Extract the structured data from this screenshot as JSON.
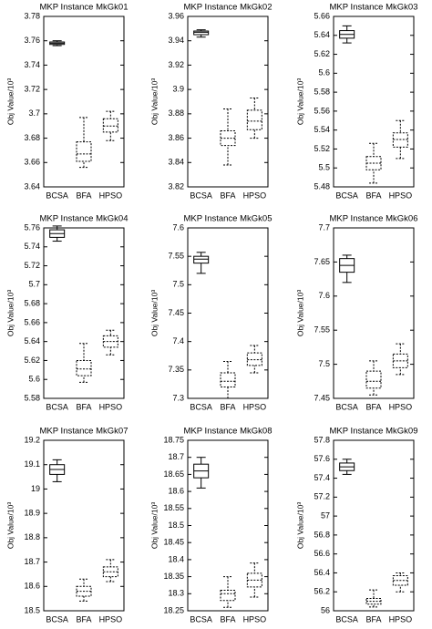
{
  "chart_data": [
    {
      "type": "box",
      "title": "MKP Instance MkGk01",
      "ylabel": "Obj Value/10³",
      "categories": [
        "BCSA",
        "BFA",
        "HPSO"
      ],
      "styles": [
        "solid",
        "dashed",
        "dashed"
      ],
      "boxes": [
        {
          "min": 3.756,
          "q1": 3.757,
          "median": 3.758,
          "q3": 3.759,
          "max": 3.76
        },
        {
          "min": 3.656,
          "q1": 3.661,
          "median": 3.667,
          "q3": 3.677,
          "max": 3.697
        },
        {
          "min": 3.678,
          "q1": 3.685,
          "median": 3.69,
          "q3": 3.696,
          "max": 3.702
        }
      ],
      "ylim": [
        3.64,
        3.78
      ],
      "yticks": [
        3.64,
        3.66,
        3.68,
        3.7,
        3.72,
        3.74,
        3.76,
        3.78
      ]
    },
    {
      "type": "box",
      "title": "MKP Instance MkGk02",
      "ylabel": "Obj Value/10³",
      "categories": [
        "BCSA",
        "BFA",
        "HPSO"
      ],
      "styles": [
        "solid",
        "dashed",
        "dashed"
      ],
      "boxes": [
        {
          "min": 3.943,
          "q1": 3.945,
          "median": 3.947,
          "q3": 3.948,
          "max": 3.949
        },
        {
          "min": 3.838,
          "q1": 3.854,
          "median": 3.86,
          "q3": 3.866,
          "max": 3.884
        },
        {
          "min": 3.86,
          "q1": 3.867,
          "median": 3.874,
          "q3": 3.883,
          "max": 3.893
        }
      ],
      "ylim": [
        3.82,
        3.96
      ],
      "yticks": [
        3.82,
        3.84,
        3.86,
        3.88,
        3.9,
        3.92,
        3.94,
        3.96
      ]
    },
    {
      "type": "box",
      "title": "MKP Instance MkGk03",
      "ylabel": "Obj Value/10³",
      "categories": [
        "BCSA",
        "BFA",
        "HPSO"
      ],
      "styles": [
        "solid",
        "dashed",
        "dashed"
      ],
      "boxes": [
        {
          "min": 5.632,
          "q1": 5.637,
          "median": 5.641,
          "q3": 5.645,
          "max": 5.65
        },
        {
          "min": 5.484,
          "q1": 5.498,
          "median": 5.505,
          "q3": 5.512,
          "max": 5.526
        },
        {
          "min": 5.51,
          "q1": 5.522,
          "median": 5.53,
          "q3": 5.537,
          "max": 5.55
        }
      ],
      "ylim": [
        5.48,
        5.66
      ],
      "yticks": [
        5.48,
        5.5,
        5.52,
        5.54,
        5.56,
        5.58,
        5.6,
        5.62,
        5.64,
        5.66
      ]
    },
    {
      "type": "box",
      "title": "MKP Instance MkGk04",
      "ylabel": "Obj Value/10³",
      "categories": [
        "BCSA",
        "BFA",
        "HPSO"
      ],
      "styles": [
        "solid",
        "dashed",
        "dashed"
      ],
      "boxes": [
        {
          "min": 5.746,
          "q1": 5.75,
          "median": 5.754,
          "q3": 5.758,
          "max": 5.762
        },
        {
          "min": 5.597,
          "q1": 5.604,
          "median": 5.611,
          "q3": 5.62,
          "max": 5.638
        },
        {
          "min": 5.626,
          "q1": 5.634,
          "median": 5.64,
          "q3": 5.646,
          "max": 5.652
        }
      ],
      "ylim": [
        5.58,
        5.76
      ],
      "yticks": [
        5.58,
        5.6,
        5.62,
        5.64,
        5.66,
        5.68,
        5.7,
        5.72,
        5.74,
        5.76
      ]
    },
    {
      "type": "box",
      "title": "MKP Instance MkGk05",
      "ylabel": "Obj Value/10³",
      "categories": [
        "BCSA",
        "BFA",
        "HPSO"
      ],
      "styles": [
        "solid",
        "dashed",
        "dashed"
      ],
      "boxes": [
        {
          "min": 7.52,
          "q1": 7.538,
          "median": 7.545,
          "q3": 7.55,
          "max": 7.557
        },
        {
          "min": 7.3,
          "q1": 7.32,
          "median": 7.33,
          "q3": 7.345,
          "max": 7.365
        },
        {
          "min": 7.345,
          "q1": 7.358,
          "median": 7.368,
          "q3": 7.38,
          "max": 7.393
        }
      ],
      "ylim": [
        7.3,
        7.6
      ],
      "yticks": [
        7.3,
        7.35,
        7.4,
        7.45,
        7.5,
        7.55,
        7.6
      ]
    },
    {
      "type": "box",
      "title": "MKP Instance MkGk06",
      "ylabel": "Obj Value/10³",
      "categories": [
        "BCSA",
        "BFA",
        "HPSO"
      ],
      "styles": [
        "solid",
        "dashed",
        "dashed"
      ],
      "boxes": [
        {
          "min": 7.62,
          "q1": 7.635,
          "median": 7.645,
          "q3": 7.655,
          "max": 7.66
        },
        {
          "min": 7.455,
          "q1": 7.465,
          "median": 7.475,
          "q3": 7.49,
          "max": 7.505
        },
        {
          "min": 7.485,
          "q1": 7.495,
          "median": 7.505,
          "q3": 7.515,
          "max": 7.53
        }
      ],
      "ylim": [
        7.45,
        7.7
      ],
      "yticks": [
        7.45,
        7.5,
        7.55,
        7.6,
        7.65,
        7.7
      ]
    },
    {
      "type": "box",
      "title": "MKP Instance MkGk07",
      "ylabel": "Obj Value/10³",
      "categories": [
        "BCSA",
        "BFA",
        "HPSO"
      ],
      "styles": [
        "solid",
        "dashed",
        "dashed"
      ],
      "boxes": [
        {
          "min": 19.03,
          "q1": 19.06,
          "median": 19.08,
          "q3": 19.1,
          "max": 19.12
        },
        {
          "min": 18.54,
          "q1": 18.56,
          "median": 18.58,
          "q3": 18.6,
          "max": 18.63
        },
        {
          "min": 18.62,
          "q1": 18.64,
          "median": 18.66,
          "q3": 18.68,
          "max": 18.71
        }
      ],
      "ylim": [
        18.5,
        19.2
      ],
      "yticks": [
        18.5,
        18.6,
        18.7,
        18.8,
        18.9,
        19,
        19.1,
        19.2
      ]
    },
    {
      "type": "box",
      "title": "MKP Instance MkGk08",
      "ylabel": "Obj Value/10³",
      "categories": [
        "BCSA",
        "BFA",
        "HPSO"
      ],
      "styles": [
        "solid",
        "dashed",
        "dashed"
      ],
      "boxes": [
        {
          "min": 18.61,
          "q1": 18.64,
          "median": 18.66,
          "q3": 18.68,
          "max": 18.7
        },
        {
          "min": 18.26,
          "q1": 18.28,
          "median": 18.3,
          "q3": 18.31,
          "max": 18.35
        },
        {
          "min": 18.29,
          "q1": 18.32,
          "median": 18.34,
          "q3": 18.36,
          "max": 18.39
        }
      ],
      "ylim": [
        18.25,
        18.75
      ],
      "yticks": [
        18.25,
        18.3,
        18.35,
        18.4,
        18.45,
        18.5,
        18.55,
        18.6,
        18.65,
        18.7,
        18.75
      ]
    },
    {
      "type": "box",
      "title": "MKP Instance MkGk09",
      "ylabel": "Obj Value/10³",
      "categories": [
        "BCSA",
        "BFA",
        "HPSO"
      ],
      "styles": [
        "solid",
        "dashed",
        "dashed"
      ],
      "boxes": [
        {
          "min": 57.44,
          "q1": 57.48,
          "median": 57.52,
          "q3": 57.56,
          "max": 57.6
        },
        {
          "min": 56.04,
          "q1": 56.07,
          "median": 56.1,
          "q3": 56.13,
          "max": 56.22
        },
        {
          "min": 56.2,
          "q1": 56.27,
          "median": 56.32,
          "q3": 56.37,
          "max": 56.4
        }
      ],
      "ylim": [
        56,
        57.8
      ],
      "yticks": [
        56,
        56.2,
        56.4,
        56.6,
        56.8,
        57,
        57.2,
        57.4,
        57.6,
        57.8
      ]
    }
  ]
}
